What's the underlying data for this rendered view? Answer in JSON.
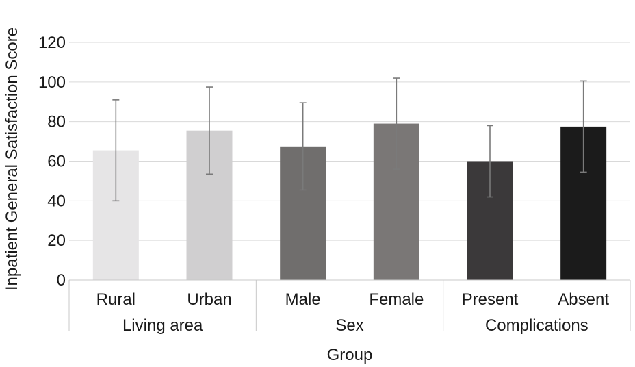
{
  "chart_data": {
    "type": "bar",
    "xlabel": "Group",
    "ylabel": "Inpatient General Satisfaction Score",
    "ylim": [
      0,
      120
    ],
    "yticks": [
      0,
      20,
      40,
      60,
      80,
      100,
      120
    ],
    "grid": true,
    "categories": [
      "Rural",
      "Urban",
      "Male",
      "Female",
      "Present",
      "Absent"
    ],
    "values": [
      65.5,
      75.5,
      67.5,
      79.0,
      60.0,
      77.5
    ],
    "error_bars": [
      25.5,
      22.0,
      22.0,
      23.0,
      18.0,
      23.0
    ],
    "colors": [
      "#e6e5e6",
      "#d0cfd0",
      "#706e6d",
      "#7a7776",
      "#3b393a",
      "#1b1b1b"
    ],
    "groups": [
      {
        "label": "Living area",
        "categories": [
          "Rural",
          "Urban"
        ]
      },
      {
        "label": "Sex",
        "categories": [
          "Male",
          "Female"
        ]
      },
      {
        "label": "Complications",
        "categories": [
          "Present",
          "Absent"
        ]
      }
    ]
  }
}
